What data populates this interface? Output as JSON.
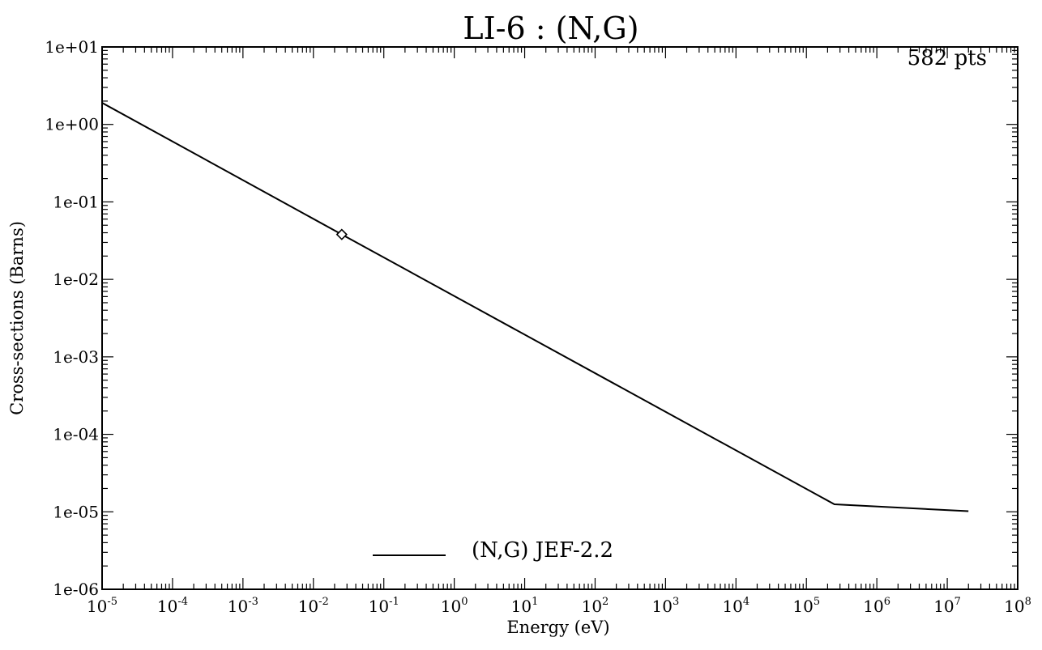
{
  "chart_data": {
    "type": "line",
    "title": "LI-6  : (N,G)",
    "xlabel": "Energy (eV)",
    "ylabel": "Cross-sections (Barns)",
    "xscale": "log",
    "yscale": "log",
    "xlim": [
      1e-05,
      100000000.0
    ],
    "ylim": [
      1e-06,
      10
    ],
    "grid": false,
    "annotation": "582 pts",
    "x_ticks": [
      {
        "base": "10",
        "exp": "-5",
        "value": 1e-05
      },
      {
        "base": "10",
        "exp": "-4",
        "value": 0.0001
      },
      {
        "base": "10",
        "exp": "-3",
        "value": 0.001
      },
      {
        "base": "10",
        "exp": "-2",
        "value": 0.01
      },
      {
        "base": "10",
        "exp": "-1",
        "value": 0.1
      },
      {
        "base": "10",
        "exp": "0",
        "value": 1
      },
      {
        "base": "10",
        "exp": "1",
        "value": 10
      },
      {
        "base": "10",
        "exp": "2",
        "value": 100
      },
      {
        "base": "10",
        "exp": "3",
        "value": 1000
      },
      {
        "base": "10",
        "exp": "4",
        "value": 10000
      },
      {
        "base": "10",
        "exp": "5",
        "value": 100000
      },
      {
        "base": "10",
        "exp": "6",
        "value": 1000000
      },
      {
        "base": "10",
        "exp": "7",
        "value": 10000000
      },
      {
        "base": "10",
        "exp": "8",
        "value": 100000000
      }
    ],
    "y_ticks": [
      {
        "label": "1e+01",
        "value": 10
      },
      {
        "label": "1e+00",
        "value": 1
      },
      {
        "label": "1e-01",
        "value": 0.1
      },
      {
        "label": "1e-02",
        "value": 0.01
      },
      {
        "label": "1e-03",
        "value": 0.001
      },
      {
        "label": "1e-04",
        "value": 0.0001
      },
      {
        "label": "1e-05",
        "value": 1e-05
      },
      {
        "label": "1e-06",
        "value": 1e-06
      }
    ],
    "legend": {
      "placement": "bottom-center",
      "label": "(N,G) JEF-2.2"
    },
    "series": [
      {
        "name": "(N,G) JEF-2.2",
        "x": [
          1e-05,
          0.0253,
          250000,
          20000000
        ],
        "y": [
          1.9,
          0.038,
          1.25e-05,
          1.02e-05
        ]
      }
    ],
    "markers": [
      {
        "x": 0.0253,
        "y": 0.038,
        "shape": "diamond"
      }
    ]
  }
}
